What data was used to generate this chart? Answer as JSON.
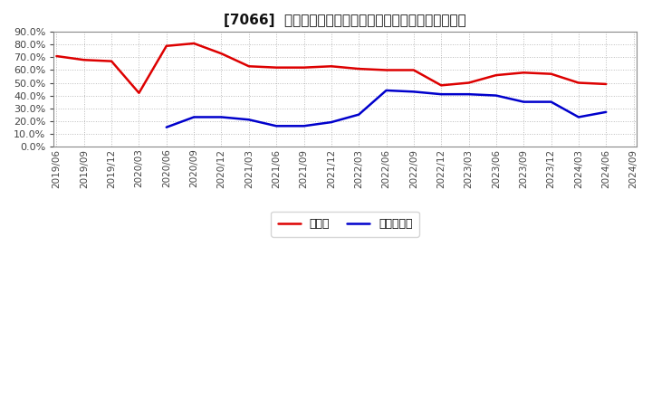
{
  "title": "[7066]  現預金、有利子負債の総資産に対する比率の推移",
  "cash_dates": [
    "2019/06",
    "2019/09",
    "2019/12",
    "2020/03",
    "2020/06",
    "2020/09",
    "2020/12",
    "2021/03",
    "2021/06",
    "2021/09",
    "2021/12",
    "2022/03",
    "2022/06",
    "2022/09",
    "2022/12",
    "2023/03",
    "2023/06",
    "2023/09",
    "2023/12",
    "2024/03",
    "2024/06"
  ],
  "cash_values": [
    0.71,
    0.68,
    0.67,
    0.42,
    0.79,
    0.81,
    0.73,
    0.63,
    0.62,
    0.62,
    0.63,
    0.61,
    0.6,
    0.6,
    0.48,
    0.5,
    0.56,
    0.58,
    0.57,
    0.5,
    0.49
  ],
  "debt_dates": [
    "2020/06",
    "2020/09",
    "2020/12",
    "2021/03",
    "2021/06",
    "2021/09",
    "2021/12",
    "2022/03",
    "2022/06",
    "2022/09",
    "2022/12",
    "2023/03",
    "2023/06",
    "2023/09",
    "2023/12",
    "2024/03",
    "2024/06"
  ],
  "debt_values": [
    0.15,
    0.23,
    0.23,
    0.21,
    0.16,
    0.16,
    0.19,
    0.25,
    0.44,
    0.43,
    0.41,
    0.41,
    0.4,
    0.35,
    0.35,
    0.23,
    0.27
  ],
  "cash_color": "#dd0000",
  "debt_color": "#0000cc",
  "legend_cash": "現預金",
  "legend_debt": "有利子負債",
  "ylim": [
    0.0,
    0.9
  ],
  "yticks": [
    0.0,
    0.1,
    0.2,
    0.3,
    0.4,
    0.5,
    0.6,
    0.7,
    0.8,
    0.9
  ],
  "all_dates": [
    "2019/06",
    "2019/09",
    "2019/12",
    "2020/03",
    "2020/06",
    "2020/09",
    "2020/12",
    "2021/03",
    "2021/06",
    "2021/09",
    "2021/12",
    "2022/03",
    "2022/06",
    "2022/09",
    "2022/12",
    "2023/03",
    "2023/06",
    "2023/09",
    "2023/12",
    "2024/03",
    "2024/06",
    "2024/09"
  ],
  "background_color": "#ffffff",
  "plot_bg_color": "#ffffff",
  "grid_color": "#aaaaaa",
  "line_width": 1.8,
  "title_fontsize": 11,
  "tick_fontsize": 7.5,
  "ytick_fontsize": 8,
  "legend_fontsize": 9
}
